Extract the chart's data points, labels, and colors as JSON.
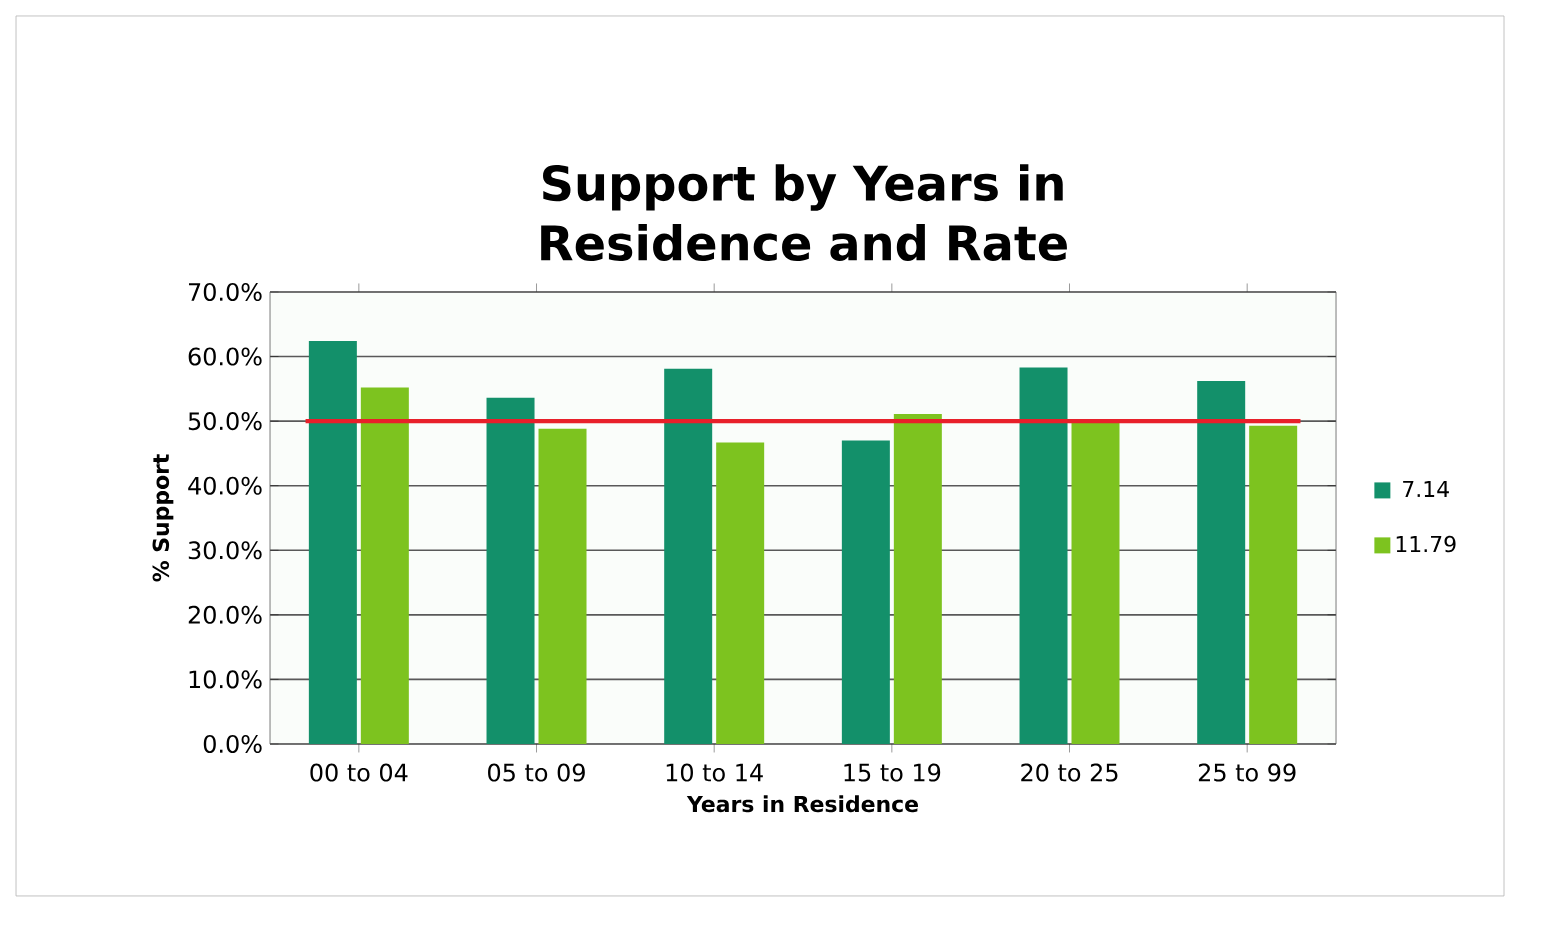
{
  "chart_data": {
    "type": "bar",
    "title": "Support by Years in Residence and Rate",
    "xlabel": "Years in Residence",
    "ylabel": "% Support",
    "categories": [
      "00 to 04",
      "05 to 09",
      "10 to 14",
      "15 to 19",
      "20 to 25",
      "25 to 99"
    ],
    "series": [
      {
        "name": "7.14",
        "color": "#13906a",
        "values": [
          62.4,
          53.6,
          58.1,
          47.0,
          58.3,
          56.2
        ]
      },
      {
        "name": "11.79",
        "color": "#7dc31f",
        "values": [
          55.2,
          48.8,
          46.7,
          51.1,
          49.8,
          49.3
        ]
      }
    ],
    "ylim": [
      0,
      70
    ],
    "yticks": [
      {
        "value": 0,
        "label": "0.0%"
      },
      {
        "value": 10,
        "label": "10.0%"
      },
      {
        "value": 20,
        "label": "20.0%"
      },
      {
        "value": 30,
        "label": "30.0%"
      },
      {
        "value": 40,
        "label": "40.0%"
      },
      {
        "value": 50,
        "label": "50.0%"
      },
      {
        "value": 60,
        "label": "60.0%"
      },
      {
        "value": 70,
        "label": "70.0%"
      }
    ],
    "ref_lines": [
      {
        "axis": "y",
        "value": 50,
        "color": "#e8202a"
      }
    ],
    "grid": "y",
    "legend": "right"
  }
}
